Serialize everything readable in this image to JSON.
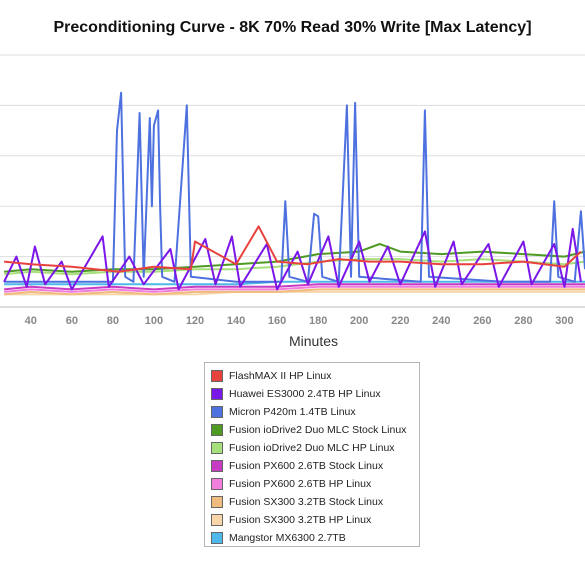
{
  "chart_data": {
    "type": "line",
    "title": "Preconditioning Curve - 8K 70% Read 30% Write [Max Latency]",
    "xlabel": "Minutes",
    "ylabel": "",
    "xlim": [
      25,
      310
    ],
    "x_ticks": [
      40,
      60,
      80,
      100,
      120,
      140,
      160,
      180,
      200,
      220,
      240,
      260,
      280,
      300
    ],
    "ylim": [
      0,
      100
    ],
    "grid": true,
    "legend_position": "bottom",
    "series": [
      {
        "name": "FlashMAX II HP Linux",
        "color": "#e8423f",
        "points": [
          [
            27,
            18
          ],
          [
            40,
            17
          ],
          [
            60,
            16
          ],
          [
            83,
            14
          ],
          [
            100,
            16
          ],
          [
            118,
            15
          ],
          [
            120,
            26
          ],
          [
            140,
            17
          ],
          [
            151,
            32
          ],
          [
            160,
            18
          ],
          [
            175,
            17
          ],
          [
            190,
            19
          ],
          [
            205,
            18
          ],
          [
            220,
            18
          ],
          [
            240,
            17
          ],
          [
            260,
            17
          ],
          [
            280,
            18
          ],
          [
            300,
            16
          ],
          [
            308,
            22
          ]
        ]
      },
      {
        "name": "Huawei ES3000 2.4TB HP Linux",
        "color": "#7b16e8",
        "points": [
          [
            27,
            10
          ],
          [
            33,
            20
          ],
          [
            38,
            8
          ],
          [
            42,
            24
          ],
          [
            47,
            9
          ],
          [
            55,
            18
          ],
          [
            60,
            7
          ],
          [
            75,
            28
          ],
          [
            78,
            8
          ],
          [
            88,
            20
          ],
          [
            95,
            9
          ],
          [
            108,
            23
          ],
          [
            112,
            7
          ],
          [
            125,
            27
          ],
          [
            130,
            9
          ],
          [
            138,
            28
          ],
          [
            142,
            8
          ],
          [
            155,
            25
          ],
          [
            160,
            7
          ],
          [
            170,
            22
          ],
          [
            175,
            9
          ],
          [
            185,
            28
          ],
          [
            190,
            8
          ],
          [
            200,
            26
          ],
          [
            205,
            10
          ],
          [
            214,
            24
          ],
          [
            220,
            9
          ],
          [
            232,
            30
          ],
          [
            237,
            8
          ],
          [
            246,
            26
          ],
          [
            250,
            9
          ],
          [
            263,
            25
          ],
          [
            268,
            8
          ],
          [
            280,
            26
          ],
          [
            284,
            9
          ],
          [
            295,
            25
          ],
          [
            300,
            8
          ],
          [
            304,
            31
          ],
          [
            308,
            10
          ]
        ]
      },
      {
        "name": "Micron P420m 1.4TB Linux",
        "color": "#4e71e0",
        "points": [
          [
            27,
            10
          ],
          [
            80,
            10
          ],
          [
            82,
            70
          ],
          [
            84,
            85
          ],
          [
            86,
            12
          ],
          [
            90,
            10
          ],
          [
            93,
            77
          ],
          [
            95,
            12
          ],
          [
            98,
            75
          ],
          [
            99,
            40
          ],
          [
            100,
            72
          ],
          [
            102,
            78
          ],
          [
            103,
            40
          ],
          [
            104,
            12
          ],
          [
            110,
            10
          ],
          [
            116,
            80
          ],
          [
            118,
            12
          ],
          [
            140,
            10
          ],
          [
            162,
            10
          ],
          [
            164,
            42
          ],
          [
            166,
            12
          ],
          [
            175,
            10
          ],
          [
            178,
            37
          ],
          [
            180,
            36
          ],
          [
            182,
            12
          ],
          [
            190,
            10
          ],
          [
            194,
            80
          ],
          [
            196,
            12
          ],
          [
            198,
            81
          ],
          [
            200,
            12
          ],
          [
            230,
            10
          ],
          [
            232,
            78
          ],
          [
            234,
            12
          ],
          [
            270,
            10
          ],
          [
            293,
            10
          ],
          [
            295,
            42
          ],
          [
            297,
            12
          ],
          [
            305,
            10
          ],
          [
            308,
            38
          ],
          [
            310,
            15
          ]
        ]
      },
      {
        "name": "Fusion ioDrive2 Duo MLC Stock Linux",
        "color": "#4f9a22",
        "points": [
          [
            27,
            14
          ],
          [
            40,
            15
          ],
          [
            60,
            14
          ],
          [
            80,
            15
          ],
          [
            100,
            15
          ],
          [
            120,
            16
          ],
          [
            140,
            17
          ],
          [
            160,
            18
          ],
          [
            180,
            21
          ],
          [
            200,
            22
          ],
          [
            210,
            25
          ],
          [
            220,
            22
          ],
          [
            240,
            21
          ],
          [
            260,
            22
          ],
          [
            280,
            21
          ],
          [
            300,
            20
          ],
          [
            310,
            22
          ]
        ]
      },
      {
        "name": "Fusion ioDrive2 Duo MLC HP Linux",
        "color": "#a7e07a",
        "points": [
          [
            27,
            13
          ],
          [
            40,
            14
          ],
          [
            60,
            13
          ],
          [
            80,
            14
          ],
          [
            100,
            14
          ],
          [
            120,
            15
          ],
          [
            140,
            15
          ],
          [
            160,
            16
          ],
          [
            180,
            18
          ],
          [
            200,
            19
          ],
          [
            220,
            19
          ],
          [
            240,
            18
          ],
          [
            260,
            19
          ],
          [
            280,
            18
          ],
          [
            300,
            17
          ],
          [
            310,
            18
          ]
        ]
      },
      {
        "name": "Fusion PX600 2.6TB Stock Linux",
        "color": "#c73bc4",
        "points": [
          [
            27,
            7
          ],
          [
            40,
            8
          ],
          [
            60,
            7
          ],
          [
            80,
            8
          ],
          [
            100,
            7
          ],
          [
            120,
            8
          ],
          [
            140,
            8
          ],
          [
            160,
            8
          ],
          [
            180,
            9
          ],
          [
            200,
            9
          ],
          [
            220,
            9
          ],
          [
            240,
            9
          ],
          [
            260,
            9
          ],
          [
            280,
            9
          ],
          [
            300,
            9
          ],
          [
            310,
            9
          ]
        ]
      },
      {
        "name": "Fusion PX600 2.6TB HP Linux",
        "color": "#f17ddc",
        "points": [
          [
            27,
            6
          ],
          [
            40,
            7
          ],
          [
            60,
            6
          ],
          [
            80,
            7
          ],
          [
            100,
            6
          ],
          [
            120,
            7
          ],
          [
            140,
            7
          ],
          [
            160,
            7
          ],
          [
            180,
            8
          ],
          [
            200,
            8
          ],
          [
            220,
            8
          ],
          [
            240,
            8
          ],
          [
            260,
            8
          ],
          [
            280,
            8
          ],
          [
            300,
            8
          ],
          [
            310,
            8
          ]
        ]
      },
      {
        "name": "Fusion SX300 3.2TB Stock Linux",
        "color": "#f0bb7e",
        "points": [
          [
            27,
            5
          ],
          [
            40,
            6
          ],
          [
            60,
            5
          ],
          [
            80,
            6
          ],
          [
            100,
            5
          ],
          [
            120,
            6
          ],
          [
            140,
            6
          ],
          [
            160,
            6
          ],
          [
            180,
            7
          ],
          [
            200,
            7
          ],
          [
            220,
            7
          ],
          [
            240,
            7
          ],
          [
            260,
            7
          ],
          [
            280,
            7
          ],
          [
            300,
            7
          ],
          [
            310,
            7
          ]
        ]
      },
      {
        "name": "Fusion SX300 3.2TB HP Linux",
        "color": "#f8d6aa",
        "points": [
          [
            27,
            5
          ],
          [
            40,
            5
          ],
          [
            60,
            5
          ],
          [
            80,
            5
          ],
          [
            100,
            5
          ],
          [
            120,
            5
          ],
          [
            140,
            6
          ],
          [
            160,
            6
          ],
          [
            180,
            6
          ],
          [
            200,
            6
          ],
          [
            220,
            6
          ],
          [
            240,
            6
          ],
          [
            260,
            6
          ],
          [
            280,
            6
          ],
          [
            300,
            6
          ],
          [
            310,
            6
          ]
        ]
      },
      {
        "name": "Mangstor MX6300 2.7TB",
        "color": "#4fb8ea",
        "points": [
          [
            27,
            9
          ],
          [
            40,
            9
          ],
          [
            60,
            9
          ],
          [
            80,
            9
          ],
          [
            100,
            9
          ],
          [
            120,
            9
          ],
          [
            140,
            9
          ],
          [
            160,
            10
          ],
          [
            180,
            10
          ],
          [
            200,
            10
          ],
          [
            220,
            10
          ],
          [
            240,
            10
          ],
          [
            260,
            10
          ],
          [
            280,
            10
          ],
          [
            300,
            10
          ],
          [
            310,
            10
          ]
        ]
      }
    ]
  }
}
